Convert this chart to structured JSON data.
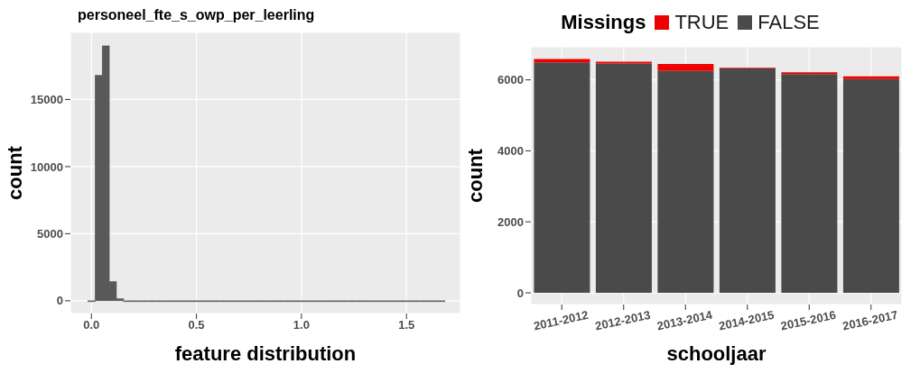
{
  "chart_data": [
    {
      "type": "histogram",
      "title": "personeel_fte_s_owp_per_leerling",
      "xlabel": "feature distribution",
      "ylabel": "count",
      "color": "#595959",
      "bins": [
        -0.017,
        0.017,
        0.051,
        0.085,
        0.119,
        0.153,
        0.187,
        0.221,
        0.255,
        0.289,
        0.323,
        0.357,
        0.391,
        0.425,
        0.459,
        0.493,
        0.527,
        0.561,
        0.595,
        0.629,
        0.663,
        0.697,
        0.731,
        0.765,
        0.799,
        0.833,
        0.867,
        0.901,
        0.935,
        0.969,
        1.003,
        1.037,
        1.071,
        1.105,
        1.139,
        1.173,
        1.207,
        1.241,
        1.275,
        1.309,
        1.343,
        1.377,
        1.411,
        1.445,
        1.479,
        1.513,
        1.547,
        1.581,
        1.615,
        1.649,
        1.683
      ],
      "values": [
        0,
        16800,
        19000,
        1430,
        160,
        0,
        0,
        0,
        0,
        0,
        0,
        0,
        0,
        0,
        0,
        0,
        0,
        0,
        0,
        0,
        0,
        0,
        0,
        0,
        0,
        0,
        0,
        0,
        0,
        0,
        0,
        0,
        0,
        0,
        0,
        0,
        0,
        0,
        0,
        0,
        0,
        0,
        0,
        0,
        0,
        0,
        0,
        0,
        0,
        0
      ],
      "xlim": [
        -0.1,
        1.757
      ],
      "xticks": [
        {
          "value": 0,
          "label": "0.0"
        },
        0.5,
        {
          "value": 1,
          "label": "1.0"
        },
        1.5
      ],
      "ylim": [
        -950,
        20000
      ],
      "yticks": [
        0,
        5000,
        10000,
        15000
      ],
      "grid": true
    },
    {
      "type": "bar",
      "stacked": true,
      "xlabel": "schooljaar",
      "ylabel": "count",
      "legend_title": "Missings",
      "legend": "top",
      "categories": [
        "2011-2012",
        "2012-2013",
        "2013-2014",
        "2014-2015",
        "2015-2016",
        "2016-2017"
      ],
      "series": [
        {
          "name": "FALSE",
          "color": "#4a4a4a",
          "values": [
            6490,
            6460,
            6250,
            6320,
            6160,
            6020
          ]
        },
        {
          "name": "TRUE",
          "color": "#ee0000",
          "values": [
            100,
            50,
            200,
            20,
            50,
            80
          ]
        }
      ],
      "ylim": [
        -330,
        6930
      ],
      "yticks": [
        0,
        2000,
        4000,
        6000
      ],
      "grid": true
    }
  ]
}
